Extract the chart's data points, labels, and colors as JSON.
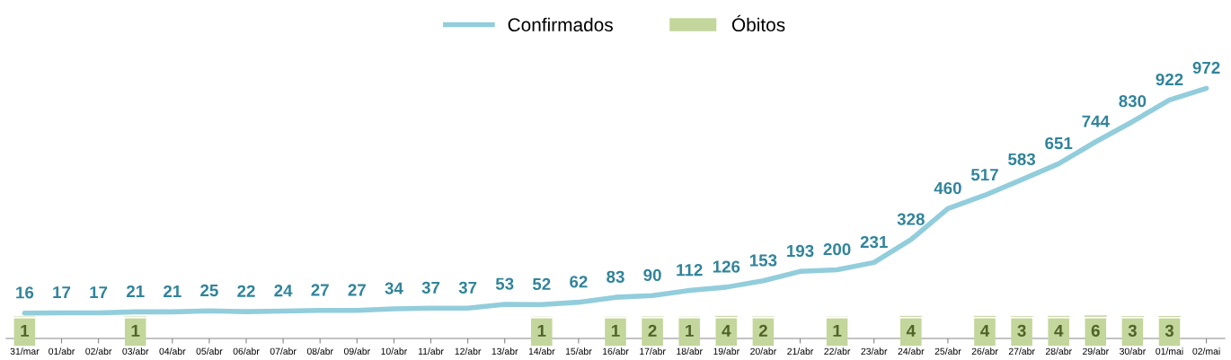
{
  "chart_data": {
    "type": "line",
    "categories": [
      "31/mar",
      "01/abr",
      "02/abr",
      "03/abr",
      "04/abr",
      "05/abr",
      "06/abr",
      "07/abr",
      "08/abr",
      "09/abr",
      "10/abr",
      "11/abr",
      "12/abr",
      "13/abr",
      "14/abr",
      "15/abr",
      "16/abr",
      "17/abr",
      "18/abr",
      "19/abr",
      "20/abr",
      "21/abr",
      "22/abr",
      "23/abr",
      "24/abr",
      "25/abr",
      "26/abr",
      "27/abr",
      "28/abr",
      "29/abr",
      "30/abr",
      "01/mai",
      "02/mai"
    ],
    "series": [
      {
        "name": "Confirmados",
        "color": "#92cddc",
        "values": [
          16,
          17,
          17,
          21,
          21,
          25,
          22,
          24,
          27,
          27,
          34,
          37,
          37,
          53,
          52,
          62,
          83,
          90,
          112,
          126,
          153,
          193,
          200,
          231,
          328,
          460,
          517,
          583,
          651,
          744,
          830,
          922,
          972
        ]
      },
      {
        "name": "Óbitos",
        "type": "bar",
        "color": "#c3d69b",
        "values": [
          1,
          null,
          null,
          1,
          null,
          null,
          null,
          null,
          null,
          null,
          null,
          null,
          null,
          null,
          1,
          null,
          1,
          2,
          1,
          4,
          2,
          null,
          1,
          null,
          4,
          null,
          4,
          3,
          4,
          6,
          3,
          3,
          null
        ]
      }
    ],
    "data_labels": true,
    "legend": "top",
    "tick_labels": "x",
    "grid": false,
    "marker": "none"
  }
}
